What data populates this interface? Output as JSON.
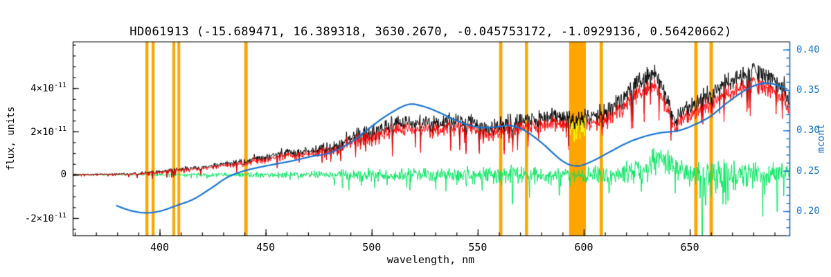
{
  "chart_data": {
    "type": "line",
    "title": "HD061913   (-15.689471, 16.389318, 3630.2670, -0.045753172, -1.0929136, 0.56420662)",
    "object": "HD061913",
    "header_values": [
      -15.689471,
      16.389318,
      3630.267,
      -0.045753172,
      -1.0929136,
      0.56420662
    ],
    "axes": {
      "x": {
        "label": "wavelength, nm",
        "min": 359,
        "max": 697,
        "major_ticks": [
          {
            "v": 400,
            "label": "400"
          },
          {
            "v": 450,
            "label": "450"
          },
          {
            "v": 500,
            "label": "500"
          },
          {
            "v": 550,
            "label": "550"
          },
          {
            "v": 600,
            "label": "600"
          },
          {
            "v": 650,
            "label": "650"
          }
        ],
        "minor_step": 10
      },
      "y_left": {
        "label": "flux, units",
        "unit_scale": "1e-11",
        "min": -2.8,
        "max": 6.15,
        "major_ticks": [
          {
            "v": -2,
            "mantissa": "-2×10",
            "exp": "-11"
          },
          {
            "v": 0,
            "mantissa": "0",
            "exp": ""
          },
          {
            "v": 2,
            "mantissa": "2×10",
            "exp": "-11"
          },
          {
            "v": 4,
            "mantissa": "4×10",
            "exp": "-11"
          }
        ],
        "minor_step": 0.5
      },
      "y_right": {
        "label": "mcont",
        "min": 0.17,
        "max": 0.41,
        "major_ticks": [
          {
            "v": 0.2,
            "label": "0.20"
          },
          {
            "v": 0.25,
            "label": "0.25"
          },
          {
            "v": 0.3,
            "label": "0.30"
          },
          {
            "v": 0.35,
            "label": "0.35"
          },
          {
            "v": 0.4,
            "label": "0.40"
          }
        ],
        "minor_step": 0.01,
        "color": "#1673d2"
      }
    },
    "colors": {
      "observed": "#000000",
      "scaled": "#ff0000",
      "residual": "#00e65e",
      "masked_segment": "#ffff00",
      "continuum": "#1673d2",
      "band": "#ffa500",
      "axis": "#000000"
    },
    "masked_bands": {
      "color": "#ffa500",
      "ranges": [
        [
          393.3,
          394.7
        ],
        [
          396.2,
          397.6
        ],
        [
          406.0,
          407.3
        ],
        [
          408.4,
          409.7
        ],
        [
          439.9,
          441.5
        ],
        [
          560.1,
          561.6
        ],
        [
          572.3,
          573.7
        ],
        [
          593.1,
          601.0
        ],
        [
          607.5,
          609.0
        ],
        [
          652.1,
          653.7
        ],
        [
          659.3,
          660.9
        ]
      ]
    },
    "series": [
      {
        "name": "observed-spectrum",
        "color": "#000000",
        "axis": "left",
        "style": "noisy",
        "seed": 1234,
        "dip_prob": 0.07,
        "mean": [
          [
            359,
            0.02
          ],
          [
            370,
            0.02
          ],
          [
            380,
            0.04
          ],
          [
            390,
            0.07
          ],
          [
            394,
            0.12
          ],
          [
            400,
            0.15
          ],
          [
            410,
            0.25
          ],
          [
            420,
            0.35
          ],
          [
            430,
            0.48
          ],
          [
            440,
            0.6
          ],
          [
            450,
            0.8
          ],
          [
            460,
            1.0
          ],
          [
            472,
            1.1
          ],
          [
            482,
            1.3
          ],
          [
            491,
            1.7
          ],
          [
            500,
            1.9
          ],
          [
            508,
            2.3
          ],
          [
            517,
            2.45
          ],
          [
            527,
            2.3
          ],
          [
            537,
            2.5
          ],
          [
            547,
            2.4
          ],
          [
            557,
            2.15
          ],
          [
            566,
            2.4
          ],
          [
            576,
            2.5
          ],
          [
            586,
            2.7
          ],
          [
            596,
            2.6
          ],
          [
            606,
            2.7
          ],
          [
            615,
            3.2
          ],
          [
            625,
            4.2
          ],
          [
            633,
            4.7
          ],
          [
            637,
            4.0
          ],
          [
            640,
            3.2
          ],
          [
            643,
            2.5
          ],
          [
            648,
            3.0
          ],
          [
            654,
            3.4
          ],
          [
            661,
            3.8
          ],
          [
            671,
            4.4
          ],
          [
            681,
            4.8
          ],
          [
            687,
            4.4
          ],
          [
            694,
            3.9
          ],
          [
            697,
            3.7
          ]
        ],
        "noise_amp": [
          [
            359,
            0.03
          ],
          [
            380,
            0.05
          ],
          [
            400,
            0.1
          ],
          [
            430,
            0.15
          ],
          [
            450,
            0.22
          ],
          [
            470,
            0.25
          ],
          [
            490,
            0.45
          ],
          [
            510,
            0.55
          ],
          [
            530,
            0.45
          ],
          [
            550,
            0.5
          ],
          [
            570,
            0.5
          ],
          [
            590,
            0.45
          ],
          [
            610,
            0.5
          ],
          [
            625,
            0.55
          ],
          [
            640,
            0.5
          ],
          [
            655,
            0.55
          ],
          [
            670,
            0.55
          ],
          [
            685,
            0.6
          ],
          [
            697,
            0.55
          ]
        ]
      },
      {
        "name": "scaled-spectrum",
        "color": "#ff0000",
        "axis": "left",
        "style": "derived",
        "source": "observed-spectrum",
        "scale": 0.88,
        "offset": -0.02,
        "gap_range": [
          593.1,
          601.0
        ]
      },
      {
        "name": "masked-spectrum-segment",
        "color": "#ffff00",
        "axis": "left",
        "style": "derived-segment",
        "range": [
          593.1,
          601.0
        ]
      },
      {
        "name": "residual",
        "color": "#00e65e",
        "axis": "left",
        "style": "noisy",
        "seed": 77,
        "dip_prob": 0.05,
        "mean": [
          [
            359,
            0
          ],
          [
            610,
            0
          ],
          [
            628,
            0.25
          ],
          [
            633,
            0.7
          ],
          [
            639,
            0.7
          ],
          [
            644,
            0.25
          ],
          [
            650,
            0
          ],
          [
            697,
            0
          ]
        ],
        "noise_amp": [
          [
            359,
            0.02
          ],
          [
            390,
            0.03
          ],
          [
            400,
            0.05
          ],
          [
            430,
            0.08
          ],
          [
            450,
            0.12
          ],
          [
            470,
            0.15
          ],
          [
            490,
            0.22
          ],
          [
            510,
            0.28
          ],
          [
            530,
            0.28
          ],
          [
            550,
            0.33
          ],
          [
            565,
            0.38
          ],
          [
            580,
            0.3
          ],
          [
            595,
            0.3
          ],
          [
            610,
            0.35
          ],
          [
            625,
            0.45
          ],
          [
            635,
            0.55
          ],
          [
            645,
            0.4
          ],
          [
            655,
            0.5
          ],
          [
            665,
            0.6
          ],
          [
            680,
            0.55
          ],
          [
            697,
            0.5
          ]
        ],
        "spikes": [
          [
            486.2,
            -0.6
          ],
          [
            518.0,
            -0.7
          ],
          [
            566.5,
            -1.35
          ],
          [
            588.5,
            -0.95
          ],
          [
            612.0,
            -0.85
          ],
          [
            655.9,
            -3.1
          ],
          [
            657.5,
            -1.4
          ],
          [
            668.0,
            -1.2
          ],
          [
            691.2,
            -1.7
          ]
        ]
      },
      {
        "name": "mcont-continuum",
        "color": "#1673d2",
        "axis": "right",
        "style": "smooth",
        "line_width": 2.2,
        "points": [
          [
            379.5,
            0.207
          ],
          [
            386,
            0.201
          ],
          [
            393,
            0.198
          ],
          [
            400,
            0.2
          ],
          [
            408,
            0.207
          ],
          [
            416,
            0.215
          ],
          [
            424,
            0.228
          ],
          [
            432,
            0.242
          ],
          [
            440,
            0.25
          ],
          [
            450,
            0.256
          ],
          [
            462,
            0.262
          ],
          [
            472,
            0.268
          ],
          [
            480,
            0.272
          ],
          [
            490,
            0.285
          ],
          [
            500,
            0.305
          ],
          [
            508,
            0.32
          ],
          [
            517,
            0.332
          ],
          [
            524,
            0.33
          ],
          [
            532,
            0.322
          ],
          [
            541,
            0.311
          ],
          [
            550,
            0.304
          ],
          [
            558,
            0.304
          ],
          [
            565,
            0.306
          ],
          [
            572,
            0.3
          ],
          [
            580,
            0.285
          ],
          [
            590,
            0.262
          ],
          [
            597,
            0.256
          ],
          [
            604,
            0.262
          ],
          [
            612,
            0.273
          ],
          [
            620,
            0.284
          ],
          [
            628,
            0.292
          ],
          [
            636,
            0.297
          ],
          [
            645,
            0.3
          ],
          [
            653,
            0.308
          ],
          [
            660,
            0.318
          ],
          [
            668,
            0.335
          ],
          [
            677,
            0.351
          ],
          [
            684,
            0.358
          ],
          [
            690,
            0.357
          ],
          [
            696,
            0.351
          ]
        ]
      }
    ]
  }
}
